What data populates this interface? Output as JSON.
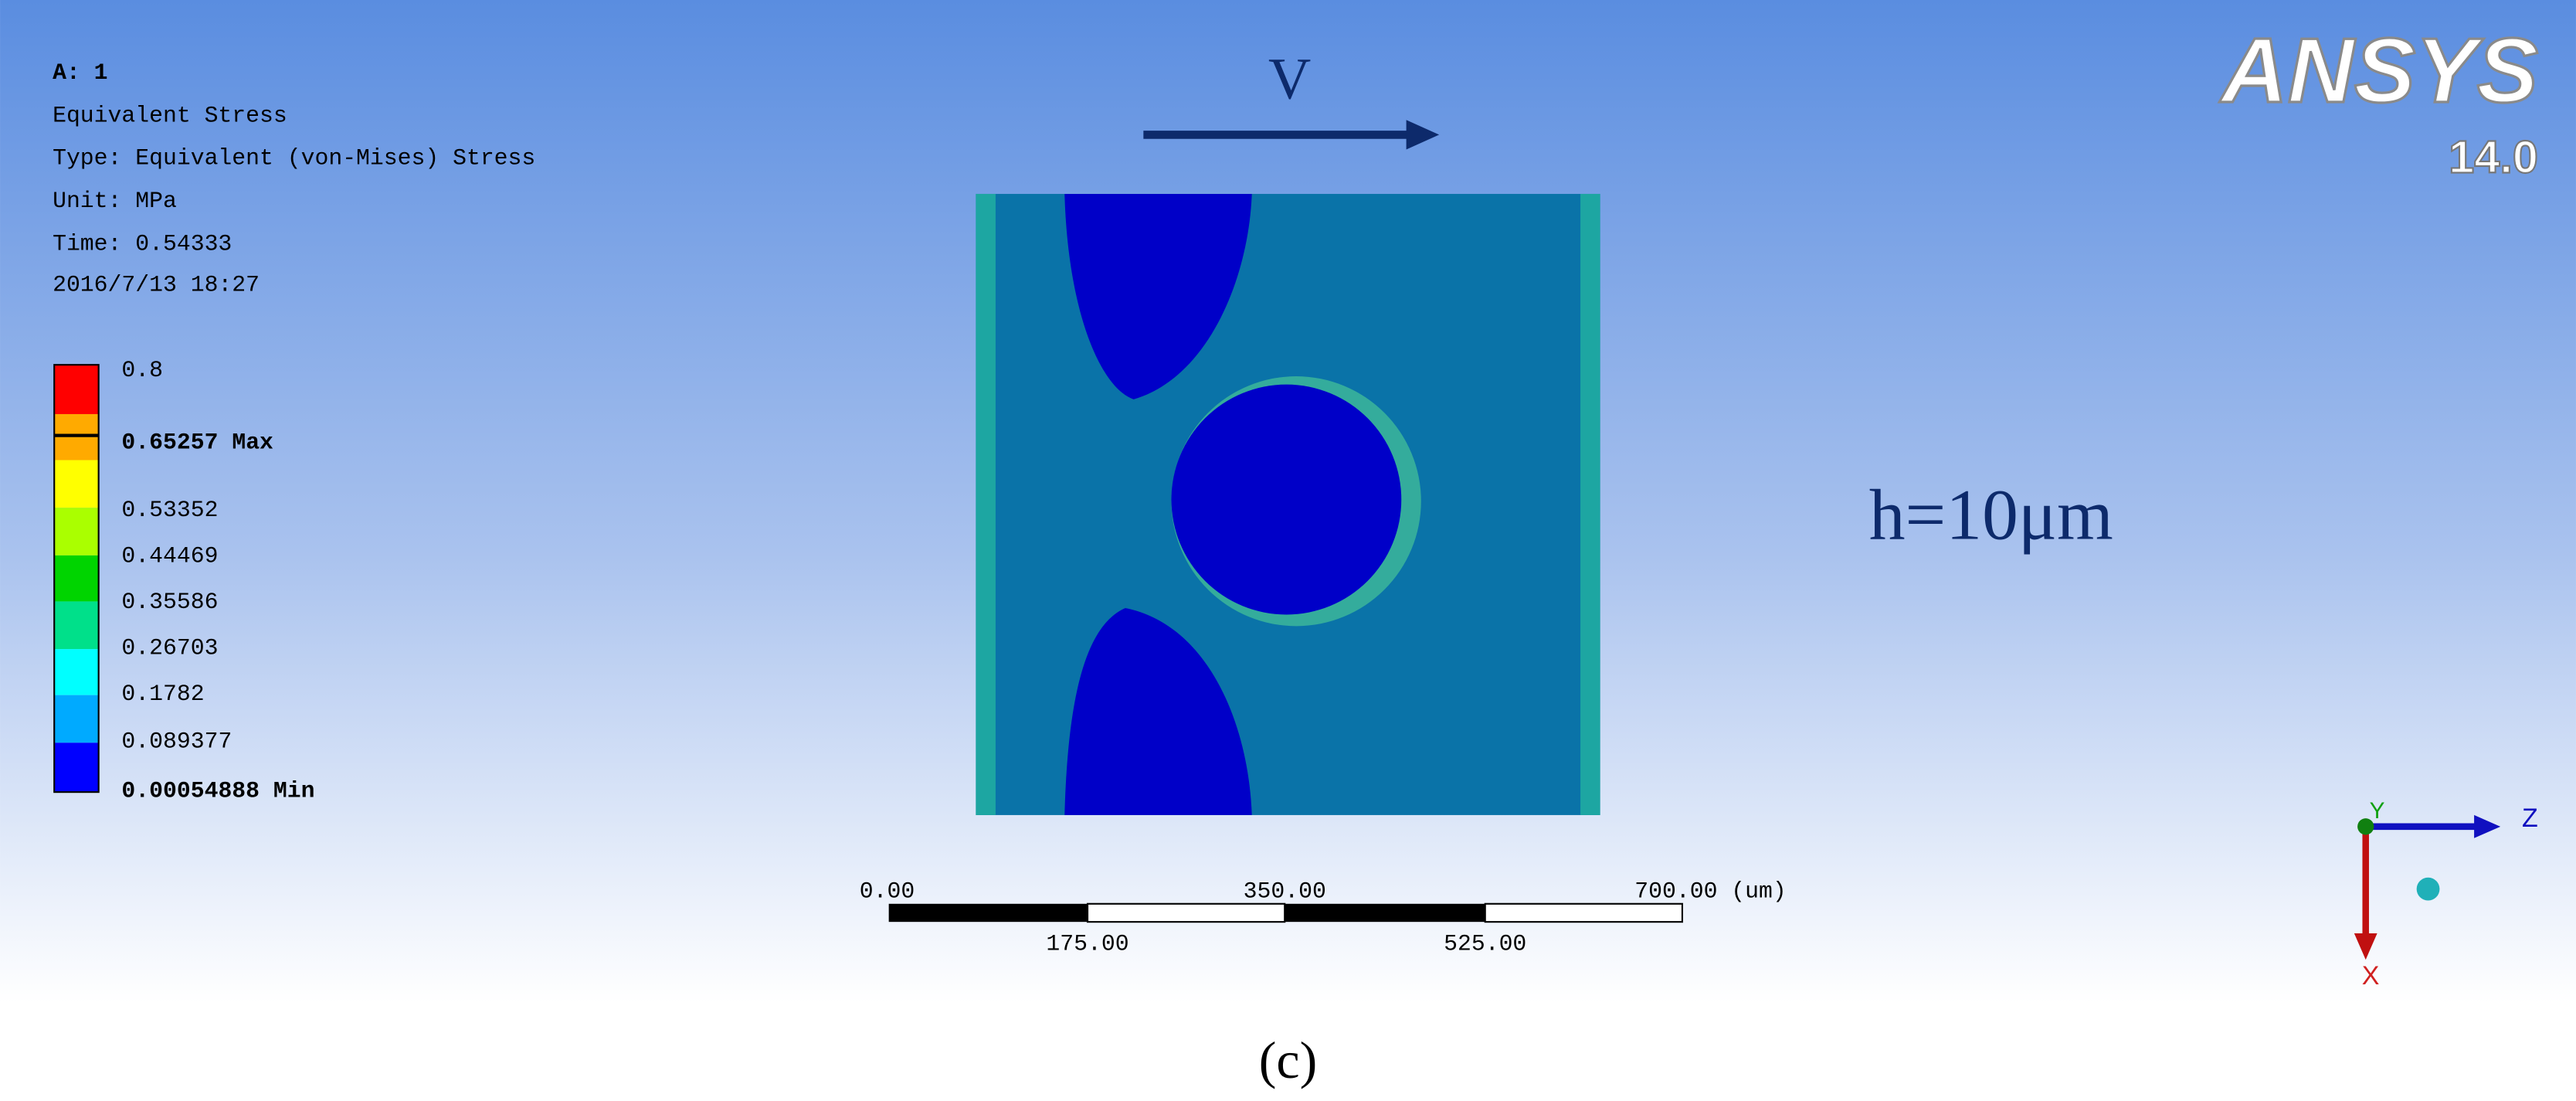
{
  "header": {
    "lines": [
      "A: 1",
      "Equivalent Stress",
      "Type: Equivalent (von-Mises) Stress",
      "Unit: MPa",
      "Time: 0.54333",
      "2016/7/13 18:27"
    ]
  },
  "legend": {
    "labels": [
      {
        "text": "0.8"
      },
      {
        "text": "0.65257",
        "tag": "Max"
      },
      {
        "text": "0.53352"
      },
      {
        "text": "0.44469"
      },
      {
        "text": "0.35586"
      },
      {
        "text": "0.26703"
      },
      {
        "text": "0.1782"
      },
      {
        "text": "0.089377"
      },
      {
        "text": "0.00054888",
        "tag": "Min"
      }
    ]
  },
  "annotations": {
    "velocity": "V",
    "thickness": "h=10μm"
  },
  "logo": {
    "name": "ANSYS",
    "version": "14.0"
  },
  "scale_bar": {
    "top_labels": [
      "0.00",
      "350.00",
      "700.00 (um)"
    ],
    "bottom_labels": [
      "175.00",
      "525.00"
    ]
  },
  "triad": {
    "x": "X",
    "y": "Y",
    "z": "Z"
  },
  "caption": "(c)"
}
